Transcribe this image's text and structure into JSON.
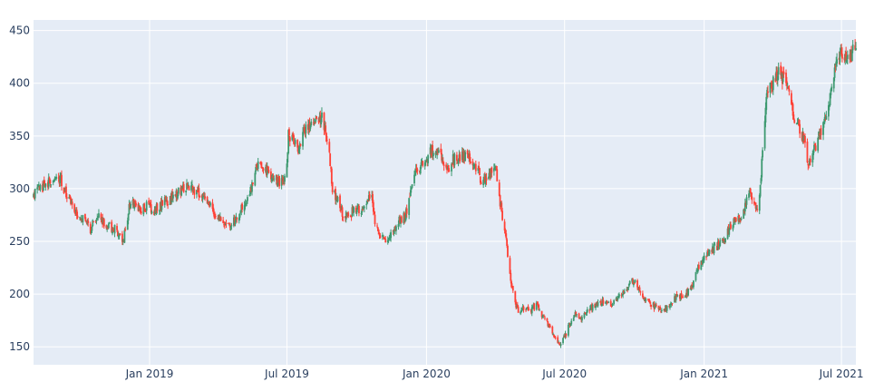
{
  "chart_data": {
    "type": "candlestick",
    "title": "",
    "xlabel": "",
    "ylabel": "",
    "x_range": [
      "2018-08-01",
      "2021-07-20"
    ],
    "ylim": [
      133,
      460
    ],
    "grid": true,
    "legend": "none",
    "plot_background": "#e5ecf6",
    "increasing_color": "#3d9970",
    "decreasing_color": "#ff4136",
    "x_ticks": [
      {
        "date": "2019-01-01",
        "label": "Jan 2019"
      },
      {
        "date": "2019-07-01",
        "label": "Jul 2019"
      },
      {
        "date": "2020-01-01",
        "label": "Jan 2020"
      },
      {
        "date": "2020-07-01",
        "label": "Jul 2020"
      },
      {
        "date": "2021-01-01",
        "label": "Jan 2021"
      },
      {
        "date": "2021-07-01",
        "label": "Jul 2021"
      }
    ],
    "y_ticks": [
      150,
      200,
      250,
      300,
      350,
      400,
      450
    ],
    "close_path": [
      [
        "2018-08-01",
        292
      ],
      [
        "2018-08-08",
        305
      ],
      [
        "2018-08-12",
        298
      ],
      [
        "2018-08-18",
        307
      ],
      [
        "2018-08-27",
        304
      ],
      [
        "2018-09-05",
        311
      ],
      [
        "2018-09-12",
        297
      ],
      [
        "2018-09-20",
        289
      ],
      [
        "2018-09-28",
        276
      ],
      [
        "2018-10-08",
        272
      ],
      [
        "2018-10-15",
        262
      ],
      [
        "2018-10-25",
        276
      ],
      [
        "2018-11-05",
        265
      ],
      [
        "2018-11-15",
        262
      ],
      [
        "2018-11-22",
        258
      ],
      [
        "2018-11-28",
        252
      ],
      [
        "2018-12-05",
        282
      ],
      [
        "2018-12-12",
        286
      ],
      [
        "2018-12-20",
        280
      ],
      [
        "2018-12-28",
        285
      ],
      [
        "2019-01-08",
        279
      ],
      [
        "2019-01-15",
        284
      ],
      [
        "2019-01-25",
        289
      ],
      [
        "2019-02-05",
        294
      ],
      [
        "2019-02-12",
        298
      ],
      [
        "2019-02-20",
        302
      ],
      [
        "2019-02-28",
        300
      ],
      [
        "2019-03-08",
        297
      ],
      [
        "2019-03-15",
        288
      ],
      [
        "2019-03-22",
        283
      ],
      [
        "2019-03-29",
        276
      ],
      [
        "2019-04-05",
        270
      ],
      [
        "2019-04-12",
        263
      ],
      [
        "2019-04-20",
        270
      ],
      [
        "2019-04-28",
        274
      ],
      [
        "2019-05-05",
        284
      ],
      [
        "2019-05-12",
        297
      ],
      [
        "2019-05-18",
        303
      ],
      [
        "2019-05-22",
        322
      ],
      [
        "2019-05-30",
        318
      ],
      [
        "2019-06-07",
        316
      ],
      [
        "2019-06-15",
        310
      ],
      [
        "2019-06-25",
        305
      ],
      [
        "2019-06-30",
        313
      ],
      [
        "2019-07-03",
        350
      ],
      [
        "2019-07-10",
        345
      ],
      [
        "2019-07-16",
        339
      ],
      [
        "2019-07-24",
        352
      ],
      [
        "2019-07-31",
        362
      ],
      [
        "2019-08-07",
        364
      ],
      [
        "2019-08-15",
        368
      ],
      [
        "2019-08-20",
        357
      ],
      [
        "2019-08-25",
        340
      ],
      [
        "2019-08-30",
        300
      ],
      [
        "2019-09-07",
        288
      ],
      [
        "2019-09-15",
        272
      ],
      [
        "2019-09-22",
        276
      ],
      [
        "2019-09-30",
        282
      ],
      [
        "2019-10-08",
        278
      ],
      [
        "2019-10-15",
        288
      ],
      [
        "2019-10-20",
        296
      ],
      [
        "2019-10-25",
        270
      ],
      [
        "2019-11-02",
        255
      ],
      [
        "2019-11-10",
        252
      ],
      [
        "2019-11-17",
        260
      ],
      [
        "2019-11-25",
        268
      ],
      [
        "2019-12-05",
        277
      ],
      [
        "2019-12-15",
        312
      ],
      [
        "2019-12-25",
        322
      ],
      [
        "2020-01-05",
        333
      ],
      [
        "2020-01-12",
        340
      ],
      [
        "2020-01-20",
        332
      ],
      [
        "2020-01-28",
        318
      ],
      [
        "2020-02-05",
        327
      ],
      [
        "2020-02-15",
        331
      ],
      [
        "2020-02-25",
        334
      ],
      [
        "2020-03-05",
        322
      ],
      [
        "2020-03-12",
        310
      ],
      [
        "2020-03-18",
        305
      ],
      [
        "2020-03-25",
        315
      ],
      [
        "2020-03-31",
        325
      ],
      [
        "2020-04-05",
        300
      ],
      [
        "2020-04-10",
        270
      ],
      [
        "2020-04-15",
        250
      ],
      [
        "2020-04-20",
        220
      ],
      [
        "2020-04-25",
        195
      ],
      [
        "2020-05-01",
        185
      ],
      [
        "2020-05-08",
        188
      ],
      [
        "2020-05-15",
        184
      ],
      [
        "2020-05-25",
        190
      ],
      [
        "2020-06-01",
        180
      ],
      [
        "2020-06-10",
        170
      ],
      [
        "2020-06-18",
        160
      ],
      [
        "2020-06-25",
        152
      ],
      [
        "2020-06-30",
        158
      ],
      [
        "2020-07-08",
        172
      ],
      [
        "2020-07-15",
        183
      ],
      [
        "2020-07-22",
        178
      ],
      [
        "2020-07-31",
        185
      ],
      [
        "2020-08-10",
        190
      ],
      [
        "2020-08-20",
        193
      ],
      [
        "2020-08-30",
        190
      ],
      [
        "2020-09-08",
        196
      ],
      [
        "2020-09-18",
        202
      ],
      [
        "2020-09-28",
        214
      ],
      [
        "2020-10-05",
        208
      ],
      [
        "2020-10-15",
        196
      ],
      [
        "2020-10-25",
        190
      ],
      [
        "2020-11-05",
        183
      ],
      [
        "2020-11-15",
        190
      ],
      [
        "2020-11-25",
        197
      ],
      [
        "2020-12-05",
        198
      ],
      [
        "2020-12-15",
        205
      ],
      [
        "2020-12-25",
        227
      ],
      [
        "2021-01-05",
        236
      ],
      [
        "2021-01-15",
        244
      ],
      [
        "2021-01-25",
        250
      ],
      [
        "2021-02-05",
        265
      ],
      [
        "2021-02-15",
        272
      ],
      [
        "2021-02-22",
        278
      ],
      [
        "2021-03-01",
        300
      ],
      [
        "2021-03-08",
        288
      ],
      [
        "2021-03-12",
        275
      ],
      [
        "2021-03-16",
        305
      ],
      [
        "2021-03-20",
        340
      ],
      [
        "2021-03-25",
        395
      ],
      [
        "2021-04-01",
        400
      ],
      [
        "2021-04-08",
        410
      ],
      [
        "2021-04-15",
        405
      ],
      [
        "2021-04-22",
        390
      ],
      [
        "2021-04-29",
        370
      ],
      [
        "2021-05-05",
        362
      ],
      [
        "2021-05-12",
        348
      ],
      [
        "2021-05-18",
        325
      ],
      [
        "2021-05-24",
        332
      ],
      [
        "2021-06-01",
        350
      ],
      [
        "2021-06-08",
        362
      ],
      [
        "2021-06-15",
        380
      ],
      [
        "2021-06-20",
        410
      ],
      [
        "2021-06-25",
        422
      ],
      [
        "2021-07-01",
        430
      ],
      [
        "2021-07-08",
        420
      ],
      [
        "2021-07-12",
        425
      ],
      [
        "2021-07-20",
        435
      ]
    ]
  }
}
